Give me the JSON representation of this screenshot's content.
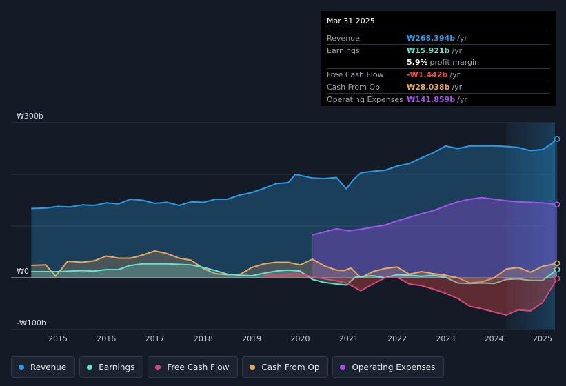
{
  "tooltip": {
    "date": "Mar 31 2025",
    "rows": [
      {
        "label": "Revenue",
        "value": "₩268.394b",
        "unit": "/yr",
        "color": "#2b9be6"
      },
      {
        "label": "Earnings",
        "value": "₩15.921b",
        "unit": "/yr",
        "color": "#6de0cd"
      },
      {
        "label": "",
        "value": "5.9%",
        "unit": "profit margin",
        "color": "#ffffff"
      },
      {
        "label": "Free Cash Flow",
        "value": "-₩1.442b",
        "unit": "/yr",
        "color": "#e84b4b"
      },
      {
        "label": "Cash From Op",
        "value": "₩28.038b",
        "unit": "/yr",
        "color": "#e9a95c"
      },
      {
        "label": "Operating Expenses",
        "value": "₩141.859b",
        "unit": "/yr",
        "color": "#a652ec"
      }
    ]
  },
  "legend": [
    {
      "label": "Revenue",
      "color": "#2b9be6"
    },
    {
      "label": "Earnings",
      "color": "#6de0cd"
    },
    {
      "label": "Free Cash Flow",
      "color": "#d1497a"
    },
    {
      "label": "Cash From Op",
      "color": "#e9a95c"
    },
    {
      "label": "Operating Expenses",
      "color": "#a652ec"
    }
  ],
  "chart_data": {
    "type": "area",
    "title": "",
    "ylabel": "",
    "y_tick_labels": [
      {
        "value": 300,
        "label": "₩300b"
      },
      {
        "value": 0,
        "label": "₩0"
      },
      {
        "value": -100,
        "label": "-₩100b"
      }
    ],
    "ylim": [
      -100,
      300
    ],
    "x_tick_labels": [
      "2015",
      "2016",
      "2017",
      "2018",
      "2019",
      "2020",
      "2021",
      "2022",
      "2023",
      "2024",
      "2025"
    ],
    "xlim": [
      2014.45,
      2025.3
    ],
    "highlight_from": 2024.25,
    "series": [
      {
        "name": "Revenue",
        "color": "#2b9be6",
        "fill": true,
        "points": [
          [
            2014.45,
            134
          ],
          [
            2014.75,
            135
          ],
          [
            2015.0,
            138
          ],
          [
            2015.25,
            137
          ],
          [
            2015.5,
            141
          ],
          [
            2015.75,
            140
          ],
          [
            2016.0,
            145
          ],
          [
            2016.25,
            143
          ],
          [
            2016.5,
            152
          ],
          [
            2016.75,
            150
          ],
          [
            2017.0,
            144
          ],
          [
            2017.25,
            146
          ],
          [
            2017.5,
            140
          ],
          [
            2017.75,
            147
          ],
          [
            2018.0,
            146
          ],
          [
            2018.25,
            152
          ],
          [
            2018.5,
            152
          ],
          [
            2018.75,
            160
          ],
          [
            2019.0,
            165
          ],
          [
            2019.25,
            173
          ],
          [
            2019.5,
            182
          ],
          [
            2019.75,
            184
          ],
          [
            2019.9,
            200
          ],
          [
            2020.0,
            198
          ],
          [
            2020.25,
            193
          ],
          [
            2020.5,
            192
          ],
          [
            2020.75,
            194
          ],
          [
            2020.95,
            172
          ],
          [
            2021.1,
            190
          ],
          [
            2021.25,
            203
          ],
          [
            2021.5,
            206
          ],
          [
            2021.75,
            208
          ],
          [
            2022.0,
            216
          ],
          [
            2022.25,
            221
          ],
          [
            2022.5,
            232
          ],
          [
            2022.75,
            242
          ],
          [
            2023.0,
            255
          ],
          [
            2023.25,
            250
          ],
          [
            2023.5,
            255
          ],
          [
            2023.75,
            255
          ],
          [
            2024.0,
            255
          ],
          [
            2024.25,
            254
          ],
          [
            2024.5,
            252
          ],
          [
            2024.75,
            246
          ],
          [
            2025.0,
            248
          ],
          [
            2025.15,
            257
          ],
          [
            2025.3,
            268.394
          ]
        ]
      },
      {
        "name": "Operating Expenses",
        "color": "#a652ec",
        "fill": true,
        "points": [
          [
            2020.25,
            83
          ],
          [
            2020.5,
            89
          ],
          [
            2020.75,
            95
          ],
          [
            2021.0,
            91
          ],
          [
            2021.25,
            94
          ],
          [
            2021.5,
            98
          ],
          [
            2021.75,
            102
          ],
          [
            2022.0,
            110
          ],
          [
            2022.25,
            117
          ],
          [
            2022.5,
            124
          ],
          [
            2022.75,
            130
          ],
          [
            2023.0,
            139
          ],
          [
            2023.25,
            147
          ],
          [
            2023.5,
            152
          ],
          [
            2023.75,
            155
          ],
          [
            2024.0,
            152
          ],
          [
            2024.25,
            149
          ],
          [
            2024.5,
            147
          ],
          [
            2024.75,
            146
          ],
          [
            2025.0,
            145
          ],
          [
            2025.3,
            141.859
          ]
        ]
      },
      {
        "name": "Cash From Op",
        "color": "#e9a95c",
        "fill": true,
        "points": [
          [
            2014.45,
            24
          ],
          [
            2014.75,
            25
          ],
          [
            2014.95,
            3
          ],
          [
            2015.2,
            32
          ],
          [
            2015.5,
            30
          ],
          [
            2015.75,
            33
          ],
          [
            2016.0,
            42
          ],
          [
            2016.25,
            38
          ],
          [
            2016.5,
            38
          ],
          [
            2016.75,
            44
          ],
          [
            2017.0,
            52
          ],
          [
            2017.25,
            47
          ],
          [
            2017.5,
            38
          ],
          [
            2017.75,
            34
          ],
          [
            2018.0,
            18
          ],
          [
            2018.25,
            8
          ],
          [
            2018.5,
            6
          ],
          [
            2018.75,
            6
          ],
          [
            2019.0,
            20
          ],
          [
            2019.25,
            27
          ],
          [
            2019.5,
            30
          ],
          [
            2019.75,
            30
          ],
          [
            2020.0,
            25
          ],
          [
            2020.25,
            36
          ],
          [
            2020.5,
            23
          ],
          [
            2020.75,
            15
          ],
          [
            2020.9,
            14
          ],
          [
            2021.05,
            19
          ],
          [
            2021.25,
            0
          ],
          [
            2021.5,
            12
          ],
          [
            2021.75,
            18
          ],
          [
            2022.0,
            21
          ],
          [
            2022.25,
            7
          ],
          [
            2022.5,
            12
          ],
          [
            2022.75,
            8
          ],
          [
            2023.0,
            5
          ],
          [
            2023.25,
            0
          ],
          [
            2023.5,
            -10
          ],
          [
            2023.75,
            -8
          ],
          [
            2024.0,
            0
          ],
          [
            2024.25,
            17
          ],
          [
            2024.5,
            20
          ],
          [
            2024.75,
            11
          ],
          [
            2025.0,
            22
          ],
          [
            2025.3,
            28.038
          ]
        ]
      },
      {
        "name": "Earnings",
        "color": "#6de0cd",
        "fill": true,
        "points": [
          [
            2014.45,
            12
          ],
          [
            2014.75,
            12
          ],
          [
            2015.0,
            12
          ],
          [
            2015.25,
            13
          ],
          [
            2015.5,
            14
          ],
          [
            2015.75,
            13
          ],
          [
            2016.0,
            16
          ],
          [
            2016.25,
            16
          ],
          [
            2016.5,
            24
          ],
          [
            2016.75,
            27
          ],
          [
            2017.0,
            27
          ],
          [
            2017.25,
            27
          ],
          [
            2017.5,
            26
          ],
          [
            2017.75,
            25
          ],
          [
            2018.0,
            20
          ],
          [
            2018.25,
            14
          ],
          [
            2018.5,
            7
          ],
          [
            2018.75,
            5
          ],
          [
            2019.0,
            4
          ],
          [
            2019.25,
            9
          ],
          [
            2019.5,
            13
          ],
          [
            2019.75,
            15
          ],
          [
            2020.0,
            13
          ],
          [
            2020.25,
            -3
          ],
          [
            2020.5,
            -9
          ],
          [
            2020.75,
            -12
          ],
          [
            2020.95,
            -14
          ],
          [
            2021.15,
            2
          ],
          [
            2021.5,
            4
          ],
          [
            2021.75,
            0
          ],
          [
            2022.0,
            6
          ],
          [
            2022.25,
            5
          ],
          [
            2022.5,
            3
          ],
          [
            2022.75,
            5
          ],
          [
            2023.0,
            1
          ],
          [
            2023.25,
            -10
          ],
          [
            2023.5,
            -11
          ],
          [
            2023.75,
            -10
          ],
          [
            2024.0,
            -11
          ],
          [
            2024.25,
            -3
          ],
          [
            2024.5,
            -2
          ],
          [
            2024.75,
            -5
          ],
          [
            2025.0,
            -5
          ],
          [
            2025.3,
            15.921
          ]
        ]
      },
      {
        "name": "Free Cash Flow",
        "color": "#d1497a",
        "fill": true,
        "fill_color": "#e84b4b",
        "points": [
          [
            2019.25,
            5
          ],
          [
            2019.5,
            5
          ],
          [
            2019.75,
            6
          ],
          [
            2020.0,
            8
          ],
          [
            2020.25,
            2
          ],
          [
            2020.5,
            -2
          ],
          [
            2020.75,
            -6
          ],
          [
            2020.95,
            -10
          ],
          [
            2021.25,
            -25
          ],
          [
            2021.5,
            -12
          ],
          [
            2021.75,
            0
          ],
          [
            2022.0,
            1
          ],
          [
            2022.25,
            -12
          ],
          [
            2022.5,
            -15
          ],
          [
            2022.75,
            -22
          ],
          [
            2023.0,
            -30
          ],
          [
            2023.25,
            -40
          ],
          [
            2023.5,
            -55
          ],
          [
            2023.75,
            -60
          ],
          [
            2024.0,
            -66
          ],
          [
            2024.25,
            -72
          ],
          [
            2024.5,
            -62
          ],
          [
            2024.75,
            -64
          ],
          [
            2025.0,
            -48
          ],
          [
            2025.3,
            -1.442
          ]
        ]
      }
    ]
  }
}
